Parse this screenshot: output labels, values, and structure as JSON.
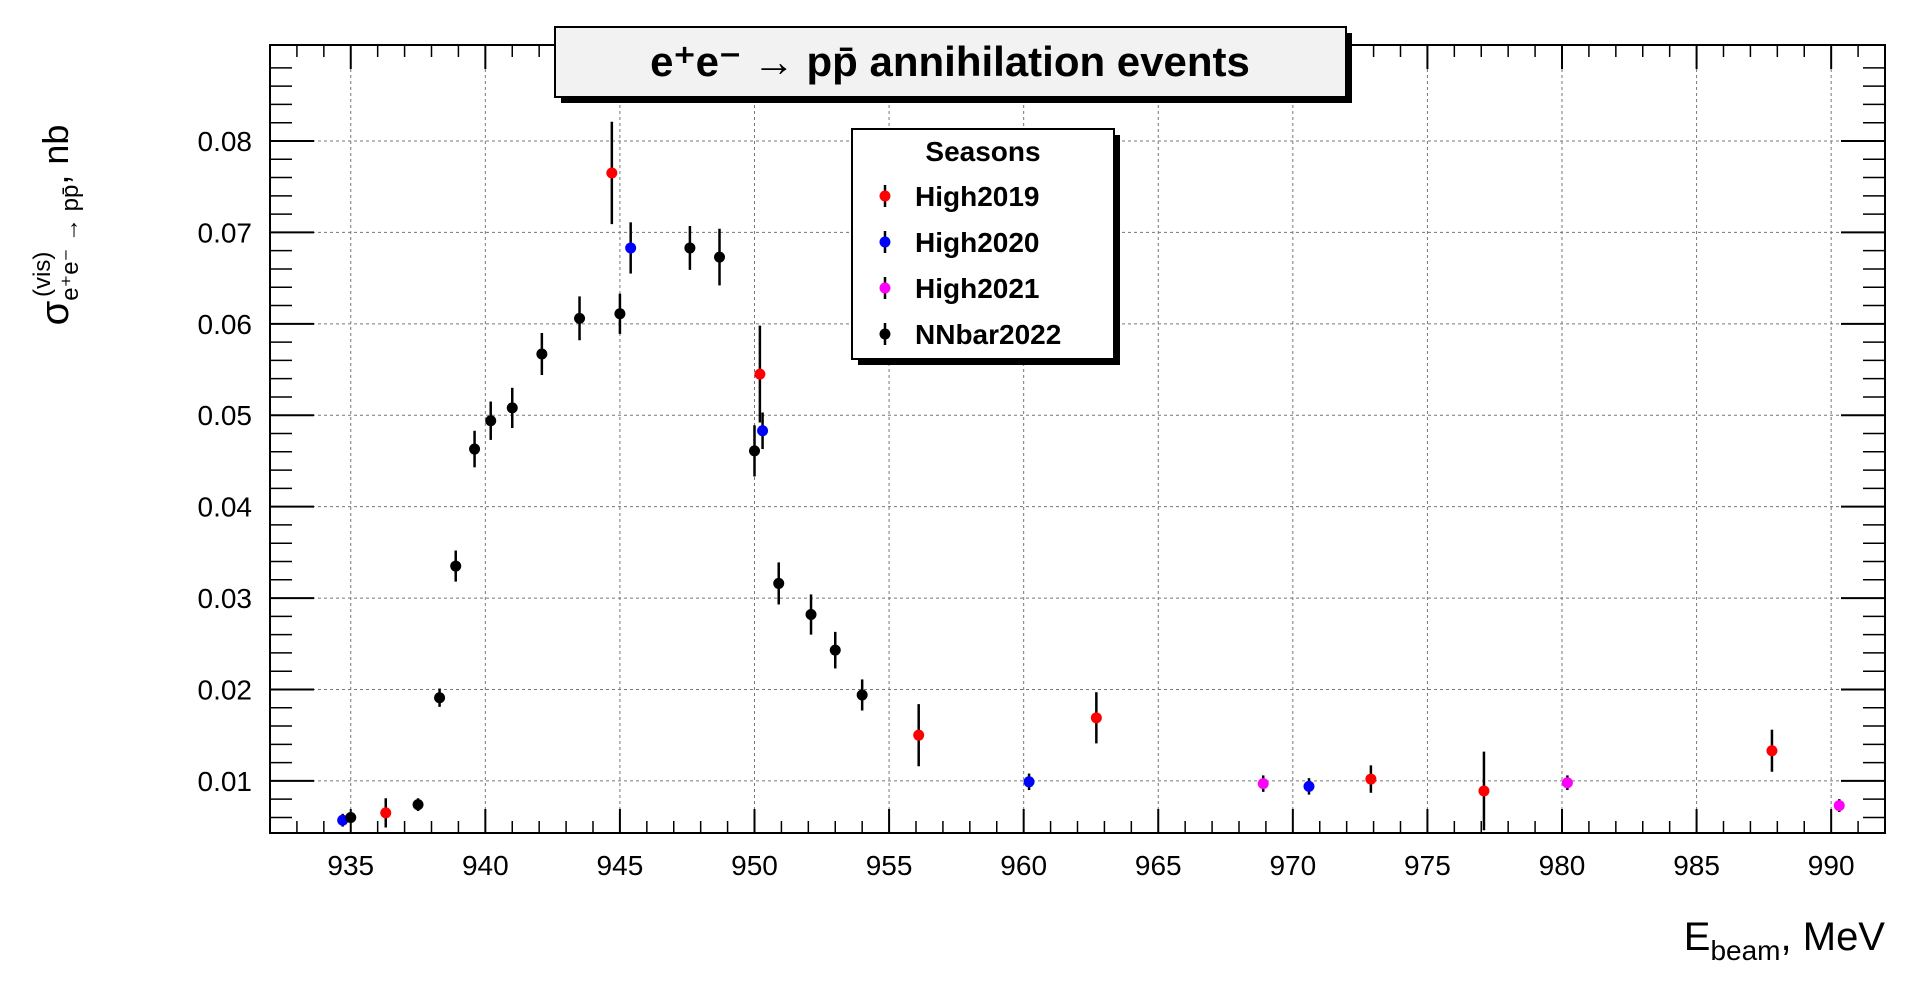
{
  "chart_data": {
    "type": "scatter",
    "title": "e⁺e⁻ → pp̄ annihilation events",
    "xlabel": "E_beam, MeV",
    "xlabel_main": "E",
    "xlabel_sub": "beam",
    "xlabel_unit": ", MeV",
    "ylabel": "σ^(vis)_(e⁺e⁻ → pp̄), nb",
    "ylabel_sigma": "σ",
    "ylabel_sup": "(vis)",
    "ylabel_sub": "e⁺e⁻ → pp̄",
    "ylabel_unit": ", nb",
    "xlim": [
      932,
      992
    ],
    "ylim": [
      0.0043,
      0.0905
    ],
    "xticks": [
      "935",
      "940",
      "945",
      "950",
      "955",
      "960",
      "965",
      "970",
      "975",
      "980",
      "985",
      "990"
    ],
    "yticks": [
      "0.01",
      "0.02",
      "0.03",
      "0.04",
      "0.05",
      "0.06",
      "0.07",
      "0.08"
    ],
    "grid": true,
    "legend_position": "top-center",
    "legend_title": "Seasons",
    "series": [
      {
        "name": "High2019",
        "color": "#ff0000",
        "points": [
          {
            "x": 936.3,
            "y": 0.0065,
            "err": 0.0016
          },
          {
            "x": 944.7,
            "y": 0.0765,
            "err": 0.0056
          },
          {
            "x": 950.2,
            "y": 0.0545,
            "err": 0.0053
          },
          {
            "x": 956.1,
            "y": 0.015,
            "err": 0.0034
          },
          {
            "x": 962.7,
            "y": 0.0169,
            "err": 0.0028
          },
          {
            "x": 972.9,
            "y": 0.0102,
            "err": 0.0015
          },
          {
            "x": 977.1,
            "y": 0.0089,
            "err": 0.0043
          },
          {
            "x": 987.8,
            "y": 0.0133,
            "err": 0.0023
          }
        ]
      },
      {
        "name": "High2020",
        "color": "#0000ff",
        "points": [
          {
            "x": 934.7,
            "y": 0.0057,
            "err": 0.0007
          },
          {
            "x": 945.4,
            "y": 0.0683,
            "err": 0.0028
          },
          {
            "x": 950.3,
            "y": 0.0483,
            "err": 0.002
          },
          {
            "x": 960.2,
            "y": 0.0099,
            "err": 0.0009
          },
          {
            "x": 970.6,
            "y": 0.0094,
            "err": 0.0009
          }
        ]
      },
      {
        "name": "High2021",
        "color": "#ff00ff",
        "points": [
          {
            "x": 968.9,
            "y": 0.0097,
            "err": 0.0009
          },
          {
            "x": 980.2,
            "y": 0.0098,
            "err": 0.0008
          },
          {
            "x": 990.3,
            "y": 0.0073,
            "err": 0.0007
          }
        ]
      },
      {
        "name": "NNbar2022",
        "color": "#000000",
        "points": [
          {
            "x": 935.0,
            "y": 0.006,
            "err": 0.0006
          },
          {
            "x": 937.5,
            "y": 0.0074,
            "err": 0.0007
          },
          {
            "x": 938.3,
            "y": 0.0191,
            "err": 0.001
          },
          {
            "x": 938.9,
            "y": 0.0335,
            "err": 0.0017
          },
          {
            "x": 939.6,
            "y": 0.0463,
            "err": 0.002
          },
          {
            "x": 940.2,
            "y": 0.0494,
            "err": 0.0021
          },
          {
            "x": 941.0,
            "y": 0.0508,
            "err": 0.0022
          },
          {
            "x": 942.1,
            "y": 0.0567,
            "err": 0.0023
          },
          {
            "x": 943.5,
            "y": 0.0606,
            "err": 0.0024
          },
          {
            "x": 945.0,
            "y": 0.0611,
            "err": 0.0022
          },
          {
            "x": 947.6,
            "y": 0.0683,
            "err": 0.0024
          },
          {
            "x": 948.7,
            "y": 0.0673,
            "err": 0.0031
          },
          {
            "x": 950.0,
            "y": 0.0461,
            "err": 0.0028
          },
          {
            "x": 950.9,
            "y": 0.0316,
            "err": 0.0023
          },
          {
            "x": 952.1,
            "y": 0.0282,
            "err": 0.0022
          },
          {
            "x": 953.0,
            "y": 0.0243,
            "err": 0.002
          },
          {
            "x": 954.0,
            "y": 0.0194,
            "err": 0.0017
          }
        ]
      }
    ]
  }
}
